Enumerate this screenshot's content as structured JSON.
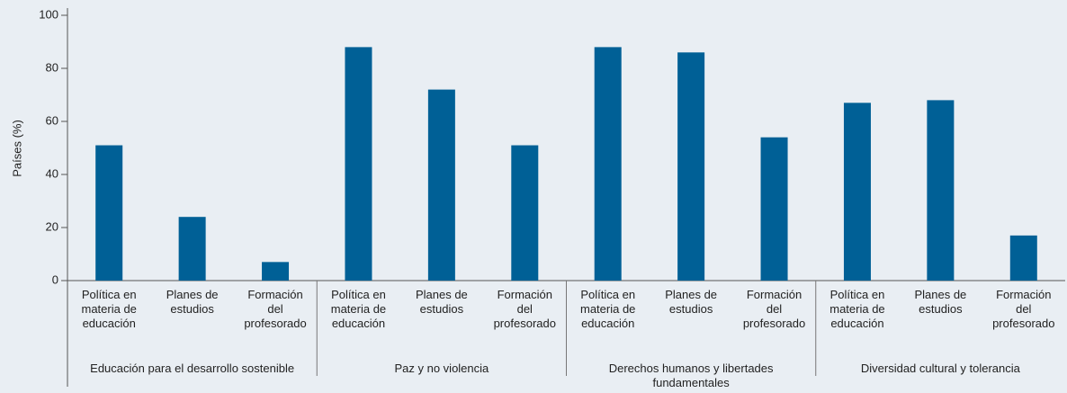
{
  "chart_data": {
    "type": "bar",
    "y_label": "Países (%)",
    "groups": [
      "Educación para el desarrollo sostenible",
      "Paz y no violencia",
      "Derechos humanos y libertades fundamentales",
      "Diversidad cultural y tolerancia"
    ],
    "categories": [
      "Política en materia de educación",
      "Planes de estudios",
      "Formación del profesorado",
      "Política en materia de educación",
      "Planes de estudios",
      "Formación del profesorado",
      "Política en materia de educación",
      "Planes de estudios",
      "Formación del profesorado",
      "Política en materia de educación",
      "Planes de estudios",
      "Formación del profesorado"
    ],
    "values": [
      51,
      24,
      7,
      88,
      72,
      51,
      88,
      86,
      54,
      67,
      68,
      17
    ],
    "color": "#006096",
    "ylim": [
      0,
      100
    ],
    "yticks": [
      0,
      20,
      40,
      60,
      80,
      100
    ],
    "grid": false
  }
}
